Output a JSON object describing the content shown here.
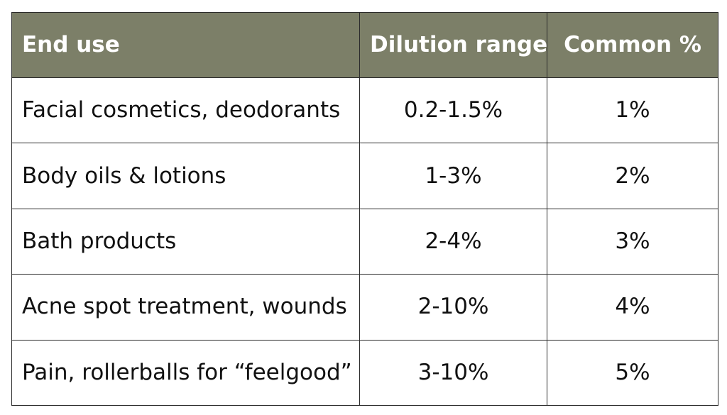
{
  "table": {
    "headers": {
      "end_use": "End use",
      "dilution_range": "Dilution range",
      "common_percent": "Common %"
    },
    "rows": [
      {
        "end_use": "Facial cosmetics, deodorants",
        "dilution_range": "0.2-1.5%",
        "common_percent": "1%"
      },
      {
        "end_use": "Body oils & lotions",
        "dilution_range": "1-3%",
        "common_percent": "2%"
      },
      {
        "end_use": "Bath products",
        "dilution_range": "2-4%",
        "common_percent": "3%"
      },
      {
        "end_use": "Acne spot treatment, wounds",
        "dilution_range": "2-10%",
        "common_percent": "4%"
      },
      {
        "end_use": "Pain, rollerballs for “feelgood”",
        "dilution_range": "3-10%",
        "common_percent": "5%"
      }
    ]
  },
  "colors": {
    "header_background": "#7c7f68",
    "header_text": "#ffffff",
    "body_text": "#111111",
    "border": "#2b2b2b"
  }
}
